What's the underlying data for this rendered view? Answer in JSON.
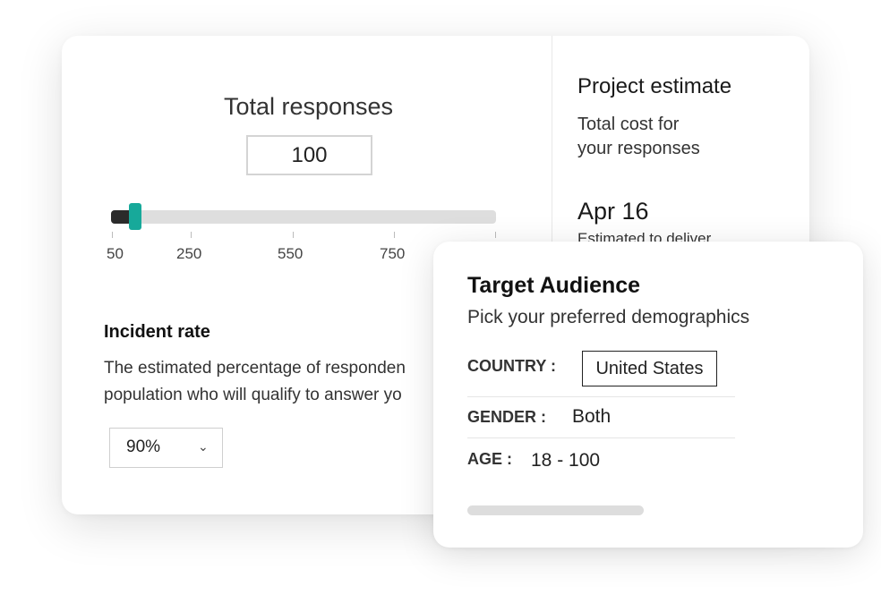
{
  "responses": {
    "title": "Total responses",
    "value": "100",
    "slider_value": 100,
    "slider_min": 50,
    "ticks": [
      "50",
      "250",
      "550",
      "750"
    ]
  },
  "incident": {
    "title": "Incident rate",
    "desc_line1": "The estimated percentage of responden",
    "desc_line2": "population who will qualify to answer yo",
    "selected": "90%"
  },
  "estimate": {
    "title": "Project estimate",
    "sub_line1": "Total cost for",
    "sub_line2": "your responses",
    "date": "Apr 16",
    "deliver": "Estimated to deliver"
  },
  "audience": {
    "title": "Target Audience",
    "subtitle": "Pick your preferred demographics",
    "country_label": "COUNTRY :",
    "country_value": "United States",
    "gender_label": "GENDER :",
    "gender_value": "Both",
    "age_label": "AGE :",
    "age_value": "18 - 100"
  },
  "colors": {
    "accent": "#17a99a",
    "track": "#dedede",
    "track_fill": "#2b2b2b"
  }
}
